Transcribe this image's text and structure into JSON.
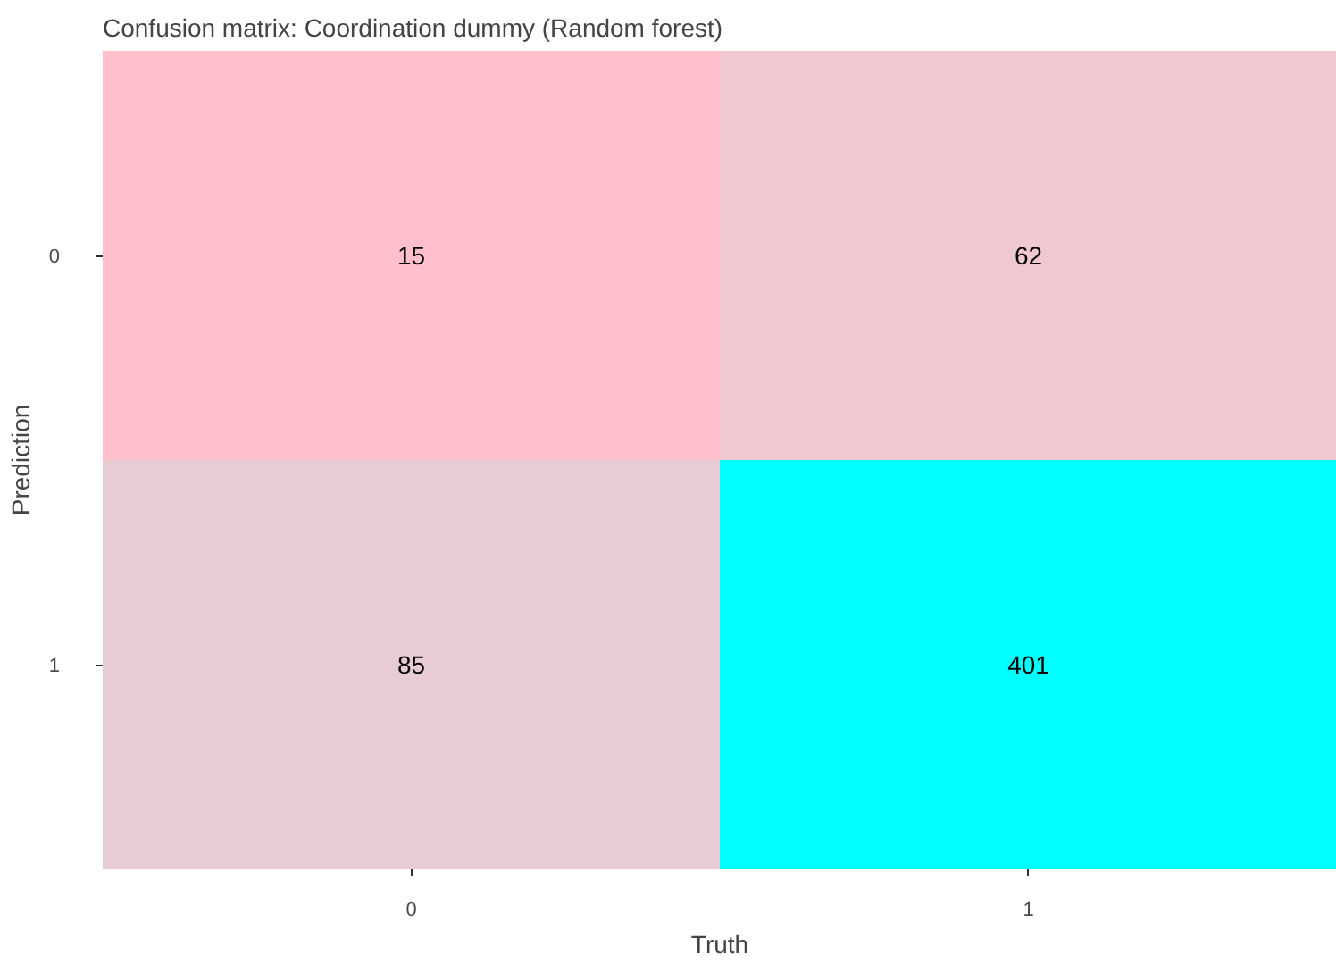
{
  "chart_data": {
    "type": "heatmap",
    "title": "Confusion matrix: Coordination dummy (Random forest)",
    "xlabel": "Truth",
    "ylabel": "Prediction",
    "categories": [
      "0",
      "1"
    ],
    "y_categories": [
      "0",
      "1"
    ],
    "cells": [
      [
        15,
        62
      ],
      [
        85,
        401
      ]
    ],
    "colors": [
      [
        "#ffc0cb",
        "#f0c8cf"
      ],
      [
        "#e8ccd3",
        "#00ffff"
      ]
    ],
    "data_labels": true
  }
}
